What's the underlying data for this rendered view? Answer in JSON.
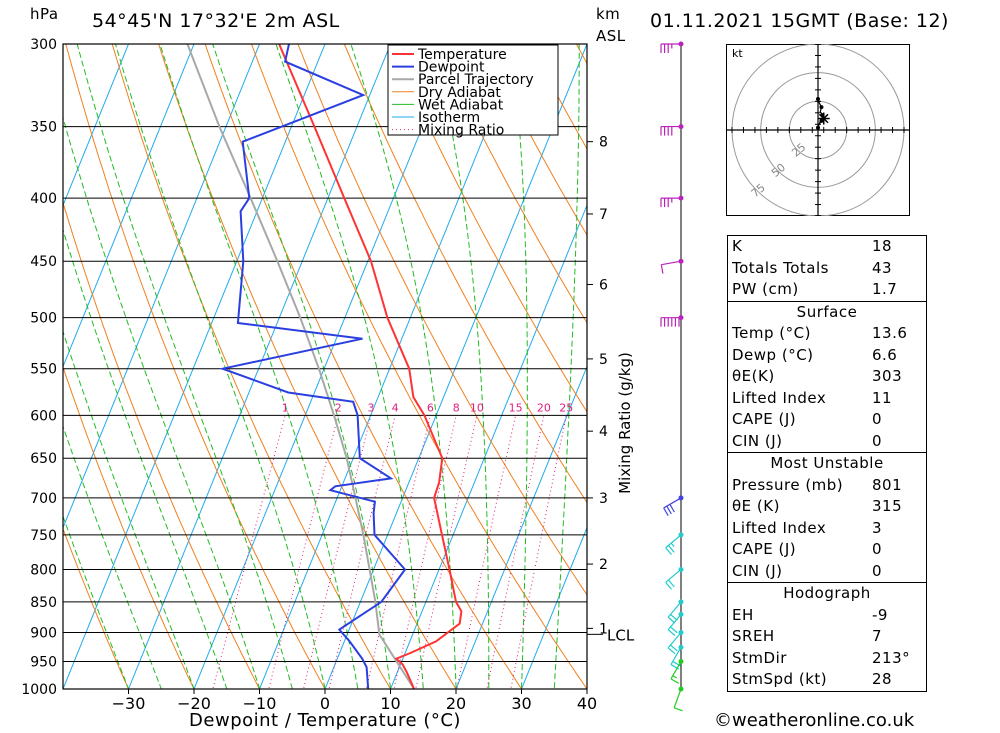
{
  "header": {
    "pressure_unit": "hPa",
    "location": "54°45'N 17°32'E 2m ASL",
    "height_unit": "km",
    "height_ref": "ASL",
    "datetime": "01.11.2021 15GMT (Base: 12)"
  },
  "chart_data": {
    "type": "skew-t",
    "pressure_levels": [
      300,
      350,
      400,
      450,
      500,
      550,
      600,
      650,
      700,
      750,
      800,
      850,
      900,
      950,
      1000
    ],
    "temperature_ticks": [
      -30,
      -20,
      -10,
      0,
      10,
      20,
      30,
      40
    ],
    "xlabel": "Dewpoint / Temperature (°C)",
    "ylabel_right": "Mixing Ratio (g/kg)",
    "xlim": [
      -40,
      40
    ],
    "ylim": [
      1000,
      300
    ],
    "height_ticks": [
      {
        "label": "8",
        "p": 360
      },
      {
        "label": "7",
        "p": 412
      },
      {
        "label": "6",
        "p": 470
      },
      {
        "label": "5",
        "p": 540
      },
      {
        "label": "4",
        "p": 618
      },
      {
        "label": "3",
        "p": 700
      },
      {
        "label": "2",
        "p": 792
      },
      {
        "label": "1",
        "p": 893
      }
    ],
    "lcl_label": "LCL",
    "lcl_pressure": 903,
    "mixing_ratio_labels": [
      "1",
      "2",
      "3",
      "4",
      "6",
      "8",
      "10",
      "15",
      "20",
      "25"
    ],
    "mixing_ratio_values": [
      1,
      2,
      3,
      4,
      6,
      8,
      10,
      15,
      20,
      25
    ],
    "legend": [
      "Temperature",
      "Dewpoint",
      "Parcel Trajectory",
      "Dry Adiabat",
      "Wet Adiabat",
      "Isotherm",
      "Mixing Ratio"
    ],
    "colors": {
      "temperature": "#ff3333",
      "dewpoint": "#2a3fe0",
      "parcel": "#a8a8a8",
      "dry_adiabat": "#f08020",
      "wet_adiabat": "#22bb22",
      "isotherm": "#22aaee",
      "mixing_ratio": "#e0207f",
      "wind_surface": "#22cc22",
      "wind_low": "#22cccc",
      "wind_mid": "#4444dd",
      "wind_high": "#bb22bb"
    },
    "temperature": [
      {
        "p": 1000,
        "t": 13.6
      },
      {
        "p": 970,
        "t": 11.5
      },
      {
        "p": 955,
        "t": 10.3
      },
      {
        "p": 945,
        "t": 9.0
      },
      {
        "p": 935,
        "t": 10.8
      },
      {
        "p": 915,
        "t": 14.0
      },
      {
        "p": 885,
        "t": 16.5
      },
      {
        "p": 865,
        "t": 16.0
      },
      {
        "p": 850,
        "t": 14.6
      },
      {
        "p": 800,
        "t": 11.6
      },
      {
        "p": 750,
        "t": 8.3
      },
      {
        "p": 700,
        "t": 4.8
      },
      {
        "p": 680,
        "t": 4.6
      },
      {
        "p": 650,
        "t": 3.6
      },
      {
        "p": 600,
        "t": -1.8
      },
      {
        "p": 580,
        "t": -4.6
      },
      {
        "p": 550,
        "t": -7.0
      },
      {
        "p": 500,
        "t": -13.5
      },
      {
        "p": 450,
        "t": -19.5
      },
      {
        "p": 400,
        "t": -27.5
      },
      {
        "p": 350,
        "t": -36.5
      },
      {
        "p": 300,
        "t": -47.0
      }
    ],
    "dewpoint": [
      {
        "p": 1000,
        "d": 6.6
      },
      {
        "p": 960,
        "d": 5.0
      },
      {
        "p": 945,
        "d": 3.8
      },
      {
        "p": 915,
        "d": 0.8
      },
      {
        "p": 895,
        "d": -1.5
      },
      {
        "p": 850,
        "d": 3.2
      },
      {
        "p": 800,
        "d": 4.8
      },
      {
        "p": 750,
        "d": -2.0
      },
      {
        "p": 720,
        "d": -3.5
      },
      {
        "p": 705,
        "d": -4.0
      },
      {
        "p": 690,
        "d": -11.5
      },
      {
        "p": 685,
        "d": -11.0
      },
      {
        "p": 675,
        "d": -3.0
      },
      {
        "p": 650,
        "d": -9.0
      },
      {
        "p": 600,
        "d": -12.0
      },
      {
        "p": 585,
        "d": -13.5
      },
      {
        "p": 575,
        "d": -24.0
      },
      {
        "p": 550,
        "d": -35.5
      },
      {
        "p": 520,
        "d": -16.0
      },
      {
        "p": 505,
        "d": -36.0
      },
      {
        "p": 450,
        "d": -39.0
      },
      {
        "p": 410,
        "d": -42.5
      },
      {
        "p": 400,
        "d": -42.0
      },
      {
        "p": 360,
        "d": -46.5
      },
      {
        "p": 330,
        "d": -31.0
      },
      {
        "p": 310,
        "d": -45.0
      },
      {
        "p": 300,
        "d": -45.5
      }
    ],
    "parcel": [
      {
        "p": 1000,
        "t": 13.6
      },
      {
        "p": 903,
        "t": 4.9
      },
      {
        "p": 850,
        "t": 2.3
      },
      {
        "p": 800,
        "t": -0.6
      },
      {
        "p": 750,
        "t": -3.7
      },
      {
        "p": 700,
        "t": -7.2
      },
      {
        "p": 650,
        "t": -11.0
      },
      {
        "p": 600,
        "t": -15.6
      },
      {
        "p": 550,
        "t": -20.8
      },
      {
        "p": 500,
        "t": -26.8
      },
      {
        "p": 450,
        "t": -33.8
      },
      {
        "p": 400,
        "t": -41.8
      },
      {
        "p": 350,
        "t": -51.0
      },
      {
        "p": 300,
        "t": -61.0
      }
    ],
    "wind_barbs": [
      {
        "p": 300,
        "dir": 270,
        "kt": 35
      },
      {
        "p": 350,
        "dir": 270,
        "kt": 40
      },
      {
        "p": 400,
        "dir": 270,
        "kt": 35
      },
      {
        "p": 450,
        "dir": 260,
        "kt": 10
      },
      {
        "p": 500,
        "dir": 270,
        "kt": 60
      },
      {
        "p": 700,
        "dir": 240,
        "kt": 30
      },
      {
        "p": 750,
        "dir": 230,
        "kt": 25
      },
      {
        "p": 800,
        "dir": 230,
        "kt": 20
      },
      {
        "p": 850,
        "dir": 220,
        "kt": 20
      },
      {
        "p": 870,
        "dir": 220,
        "kt": 20
      },
      {
        "p": 900,
        "dir": 220,
        "kt": 20
      },
      {
        "p": 925,
        "dir": 210,
        "kt": 20
      },
      {
        "p": 950,
        "dir": 210,
        "kt": 15
      },
      {
        "p": 1000,
        "dir": 200,
        "kt": 10
      }
    ],
    "hodograph": {
      "unit": "kt",
      "ring_labels": [
        "25",
        "50",
        "75"
      ],
      "ring_values": [
        25,
        50,
        75
      ],
      "points_kt": [
        {
          "u": 0,
          "v": 2
        },
        {
          "u": 1,
          "v": 5
        },
        {
          "u": 3,
          "v": 8
        },
        {
          "u": 5,
          "v": 10
        },
        {
          "u": 4,
          "v": 13
        },
        {
          "u": 2,
          "v": 16
        },
        {
          "u": 3,
          "v": 20
        },
        {
          "u": 1,
          "v": 24
        },
        {
          "u": 0,
          "v": 27
        }
      ],
      "storm_motion": {
        "u": 5,
        "v": 10
      }
    }
  },
  "indices": {
    "rows": [
      {
        "label": "K",
        "value": "18"
      },
      {
        "label": "Totals Totals",
        "value": "43"
      },
      {
        "label": "PW (cm)",
        "value": "1.7"
      }
    ]
  },
  "surface": {
    "title": "Surface",
    "rows": [
      {
        "label": "Temp (°C)",
        "value": "13.6"
      },
      {
        "label": "Dewp (°C)",
        "value": "6.6"
      },
      {
        "label": "θE(K)",
        "value": "303"
      },
      {
        "label": "Lifted Index",
        "value": "11"
      },
      {
        "label": "CAPE (J)",
        "value": "0"
      },
      {
        "label": "CIN (J)",
        "value": "0"
      }
    ]
  },
  "most_unstable": {
    "title": "Most Unstable",
    "rows": [
      {
        "label": "Pressure (mb)",
        "value": "801"
      },
      {
        "label": "θE (K)",
        "value": "315"
      },
      {
        "label": "Lifted Index",
        "value": "3"
      },
      {
        "label": "CAPE (J)",
        "value": "0"
      },
      {
        "label": "CIN (J)",
        "value": "0"
      }
    ]
  },
  "hodograph_table": {
    "title": "Hodograph",
    "rows": [
      {
        "label": "EH",
        "value": "-9"
      },
      {
        "label": "SREH",
        "value": "7"
      },
      {
        "label": "StmDir",
        "value": "213°"
      },
      {
        "label": "StmSpd (kt)",
        "value": "28"
      }
    ]
  },
  "footer": {
    "copyright": "©weatheronline.co.uk"
  }
}
